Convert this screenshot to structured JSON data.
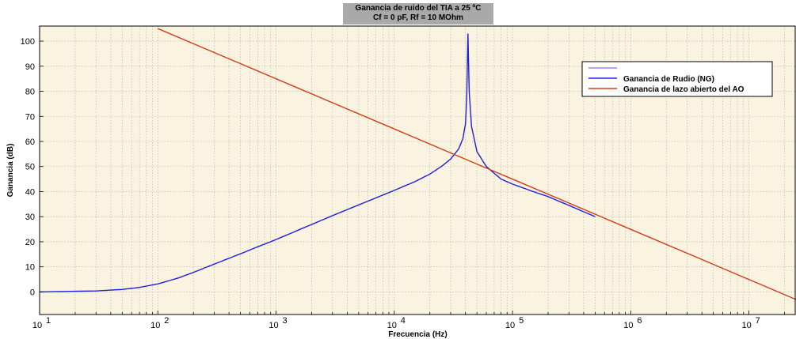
{
  "chart_data": {
    "type": "line",
    "title": "Ganancia de ruido del TIA a 25 ºC",
    "subtitle": "Cf = 0 pF, Rf = 10 MOhm",
    "xlabel": "Frecuencia (Hz)",
    "ylabel": "Ganancia (dB)",
    "xscale": "log",
    "xlim": [
      10,
      25000000
    ],
    "ylim": [
      -9,
      106
    ],
    "xticks": [
      10,
      100,
      1000,
      10000,
      100000,
      1000000,
      10000000
    ],
    "xtick_labels": [
      {
        "base": "10",
        "exp": "1"
      },
      {
        "base": "10",
        "exp": "2"
      },
      {
        "base": "10",
        "exp": "3"
      },
      {
        "base": "10",
        "exp": "4"
      },
      {
        "base": "10",
        "exp": "5"
      },
      {
        "base": "10",
        "exp": "6"
      },
      {
        "base": "10",
        "exp": "7"
      }
    ],
    "yticks": [
      0,
      10,
      20,
      30,
      40,
      50,
      60,
      70,
      80,
      90,
      100
    ],
    "grid": true,
    "plot_background": "#faf3e0",
    "legend_position": "top-right",
    "legend_entries": [
      "",
      "Ganancia de Rudio (NG)",
      "Ganancia de lazo abierto del AO"
    ],
    "series": [
      {
        "name": "Ganancia de Rudio (NG)",
        "color": "#1f1fe0",
        "x": [
          10,
          30,
          50,
          70,
          100,
          150,
          200,
          300,
          500,
          700,
          1000,
          2000,
          3000,
          5000,
          7000,
          10000,
          15000,
          20000,
          25000,
          30000,
          35000,
          38000,
          40000,
          41000,
          42000,
          43000,
          45000,
          50000,
          60000,
          80000,
          100000,
          150000,
          200000,
          300000,
          500000
        ],
        "y": [
          0,
          0.4,
          1,
          1.8,
          3.2,
          5.6,
          7.8,
          11.1,
          15.2,
          18,
          20.9,
          26.9,
          30.4,
          34.7,
          37.5,
          40.5,
          44,
          47,
          50,
          53,
          57,
          61,
          67,
          78,
          103,
          80,
          66,
          56,
          50,
          45,
          43,
          40,
          38,
          34.5,
          30
        ]
      },
      {
        "name": "Ganancia de lazo abierto del AO",
        "color": "#d43a1a",
        "x": [
          100,
          25000000
        ],
        "y": [
          105,
          -3
        ]
      }
    ]
  }
}
